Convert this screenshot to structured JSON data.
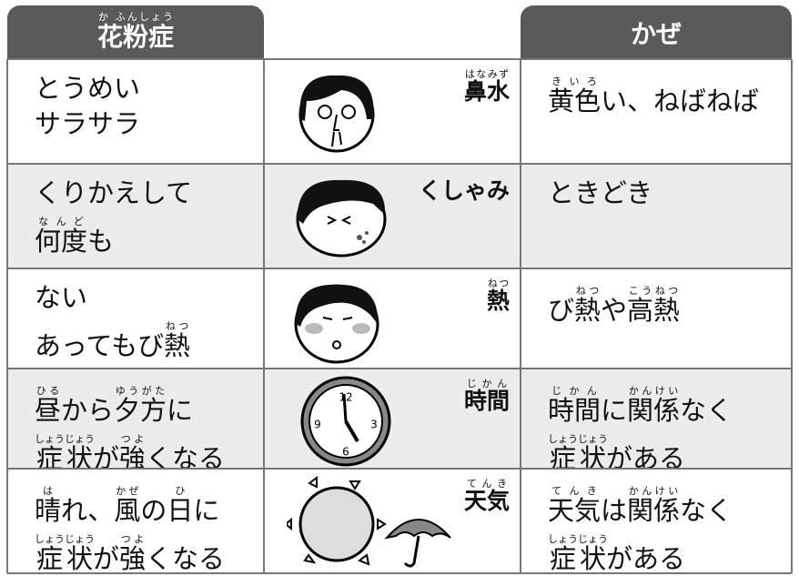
{
  "header": {
    "left": {
      "t": "花粉症",
      "r": "か ふんしょう"
    },
    "right": {
      "t": "かぜ"
    }
  },
  "rows": [
    {
      "symptom": {
        "t": "鼻水",
        "r": "はなみず"
      },
      "left": [
        [
          {
            "t": "とうめい"
          }
        ],
        [
          {
            "t": "サラサラ"
          }
        ]
      ],
      "right": [
        [
          {
            "t": "黄色",
            "r": "きいろ"
          },
          {
            "t": "い、ねばねば"
          }
        ]
      ]
    },
    {
      "symptom": {
        "t": "くしゃみ"
      },
      "left": [
        [
          {
            "t": "くりかえして"
          }
        ],
        [
          {
            "t": "何度",
            "r": "なんど"
          },
          {
            "t": "も"
          }
        ]
      ],
      "right": [
        [
          {
            "t": "ときどき"
          }
        ]
      ]
    },
    {
      "symptom": {
        "t": "熱",
        "r": "ねつ"
      },
      "left": [
        [
          {
            "t": "ない"
          }
        ],
        [
          {
            "t": "あってもび"
          },
          {
            "t": "熱",
            "r": "ねつ"
          }
        ]
      ],
      "right": [
        [
          {
            "t": "び"
          },
          {
            "t": "熱",
            "r": "ねつ"
          },
          {
            "t": "や"
          },
          {
            "t": "高熱",
            "r": "こうねつ"
          }
        ]
      ]
    },
    {
      "symptom": {
        "t": "時間",
        "r": "じかん"
      },
      "clock_labels": [
        "12",
        "3",
        "6",
        "9"
      ],
      "left": [
        [
          {
            "t": "昼",
            "r": "ひる"
          },
          {
            "t": "から"
          },
          {
            "t": "夕方",
            "r": "ゆうがた"
          },
          {
            "t": "に"
          }
        ],
        [
          {
            "t": "症状",
            "r": "しょうじょう"
          },
          {
            "t": "が"
          },
          {
            "t": "強",
            "r": "つよ"
          },
          {
            "t": "くなる"
          }
        ]
      ],
      "right": [
        [
          {
            "t": "時間",
            "r": "じかん"
          },
          {
            "t": "に"
          },
          {
            "t": "関係",
            "r": "かんけい"
          },
          {
            "t": "なく"
          }
        ],
        [
          {
            "t": "症状",
            "r": "しょうじょう"
          },
          {
            "t": "がある"
          }
        ]
      ]
    },
    {
      "symptom": {
        "t": "天気",
        "r": "てんき"
      },
      "left": [
        [
          {
            "t": "晴",
            "r": "は"
          },
          {
            "t": "れ、"
          },
          {
            "t": "風",
            "r": "かぜ"
          },
          {
            "t": "の"
          },
          {
            "t": "日",
            "r": "ひ"
          },
          {
            "t": "に"
          }
        ],
        [
          {
            "t": "症状",
            "r": "しょうじょう"
          },
          {
            "t": "が"
          },
          {
            "t": "強",
            "r": "つよ"
          },
          {
            "t": "くなる"
          }
        ]
      ],
      "right": [
        [
          {
            "t": "天気",
            "r": "てんき"
          },
          {
            "t": "は"
          },
          {
            "t": "関係",
            "r": "かんけい"
          },
          {
            "t": "なく"
          }
        ],
        [
          {
            "t": "症状",
            "r": "しょうじょう"
          },
          {
            "t": "がある"
          }
        ]
      ]
    }
  ]
}
